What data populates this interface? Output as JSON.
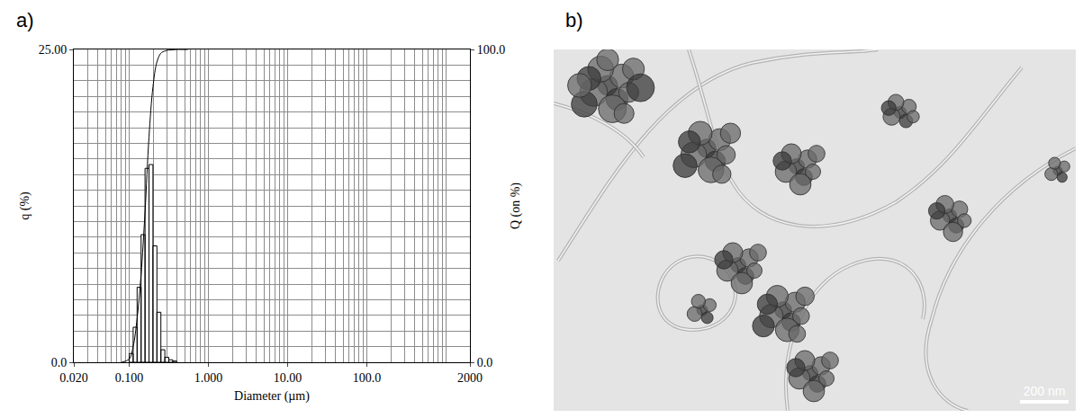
{
  "chart_data": {
    "type": "histogram",
    "panel_label": "a)",
    "x_label": "Diameter (µm)",
    "y_label": "q (%)",
    "y2_label": "Q (on %)",
    "log": "x",
    "grid": true,
    "xlim": [
      0.02,
      2000
    ],
    "xticks": [
      {
        "value": 0.02,
        "label": "0.020"
      },
      {
        "value": 0.1,
        "label": "0.100"
      },
      {
        "value": 1,
        "label": "1.000"
      },
      {
        "value": 10,
        "label": "10.00"
      },
      {
        "value": 100,
        "label": "100.0"
      },
      2000
    ],
    "ylim": [
      0,
      25
    ],
    "yticks": [
      {
        "value": 0,
        "label": "0.0"
      },
      {
        "value": 25,
        "label": "25.00"
      }
    ],
    "y2lim": [
      0,
      100
    ],
    "y2ticks": [
      {
        "value": 0,
        "label": "0.0"
      },
      {
        "value": 100,
        "label": "100.0"
      }
    ],
    "series": [
      {
        "type": "histogram",
        "color": "#000000",
        "axis": "y",
        "bins": [
          0.1,
          0.1122,
          0.1259,
          0.1413,
          0.1585,
          0.1778,
          0.1995,
          0.2239,
          0.2512,
          0.2818,
          0.3162,
          0.3548,
          0.3981
        ],
        "values": [
          0.7,
          2.8,
          6.0,
          10.2,
          15.5,
          15.8,
          9.3,
          4.0,
          1.0,
          0.4,
          0.2,
          0.1
        ]
      },
      {
        "type": "line",
        "color": "#000000",
        "axis": "y2",
        "x": [
          0.08,
          0.1,
          0.1122,
          0.1259,
          0.1413,
          0.1585,
          0.1778,
          0.1995,
          0.2239,
          0.2512,
          0.2818,
          0.3162,
          0.3548,
          0.3981,
          0.45,
          0.55
        ],
        "values": [
          0,
          1,
          5,
          14,
          28,
          48,
          72,
          88,
          96,
          98.8,
          99.5,
          99.8,
          99.9,
          100,
          100,
          100
        ]
      }
    ]
  },
  "image_panel": {
    "panel_label": "b)",
    "scale_bar": "200 nm"
  }
}
